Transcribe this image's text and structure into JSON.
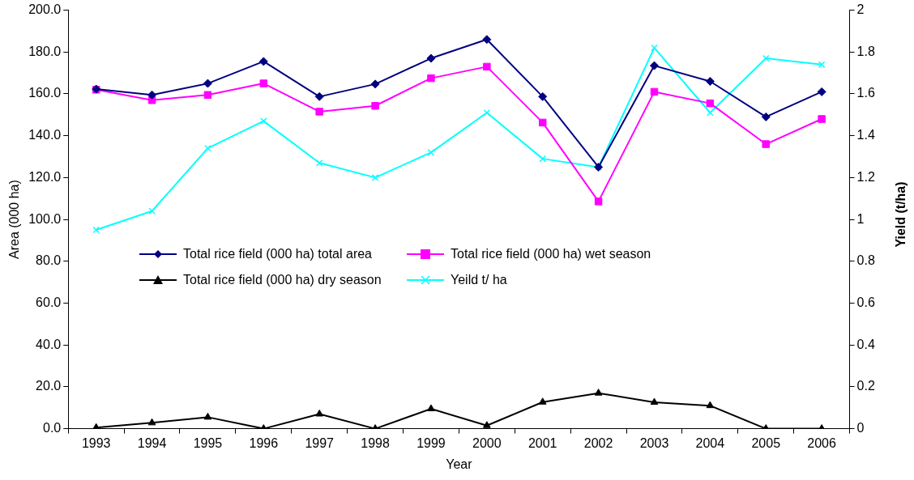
{
  "chart_data": {
    "type": "line",
    "xlabel": "Year",
    "ylabel": "Area (000 ha)",
    "y2label": "Yield (t/ha)",
    "categories": [
      "1993",
      "1994",
      "1995",
      "1996",
      "1997",
      "1998",
      "1999",
      "2000",
      "2001",
      "2002",
      "2003",
      "2004",
      "2005",
      "2006"
    ],
    "series": [
      {
        "name": "Total rice field (000 ha) total area",
        "color": "#000080",
        "marker": "diamond",
        "values": [
          162.3,
          159.5,
          165,
          175.5,
          158.7,
          164.7,
          177,
          186,
          158.7,
          125,
          173.5,
          166,
          149,
          161
        ]
      },
      {
        "name": "Total rice field (000 ha) wet season",
        "color": "#ff00ff",
        "marker": "square",
        "values": [
          162,
          157,
          159.5,
          165,
          151.5,
          154.3,
          167.5,
          173,
          146.3,
          108.6,
          161,
          155.5,
          136,
          148
        ]
      },
      {
        "name": "Total rice field (000 ha) dry season",
        "color": "#000000",
        "marker": "triangle",
        "values": [
          0.5,
          2.8,
          5.5,
          0,
          7,
          0,
          9.5,
          1.5,
          12.7,
          17,
          12.6,
          11,
          0,
          0
        ]
      },
      {
        "name": "Yeild t/ ha",
        "color": "#00ffff",
        "marker": "cross",
        "axis": "y2",
        "values": [
          0.95,
          1.04,
          1.34,
          1.47,
          1.27,
          1.2,
          1.32,
          1.51,
          1.29,
          1.25,
          1.82,
          1.51,
          1.77,
          1.74
        ]
      }
    ],
    "ylim": [
      0,
      200
    ],
    "yticks": [
      {
        "value": 0,
        "label": "0.0"
      },
      {
        "value": 20,
        "label": "20.0"
      },
      {
        "value": 40,
        "label": "40.0"
      },
      {
        "value": 60,
        "label": "60.0"
      },
      {
        "value": 80,
        "label": "80.0"
      },
      {
        "value": 100,
        "label": "100.0"
      },
      {
        "value": 120,
        "label": "120.0"
      },
      {
        "value": 140,
        "label": "140.0"
      },
      {
        "value": 160,
        "label": "160.0"
      },
      {
        "value": 180,
        "label": "180.0"
      },
      {
        "value": 200,
        "label": "200.0"
      }
    ],
    "y2lim": [
      0,
      2
    ],
    "y2ticks": [
      0,
      0.2,
      0.4,
      0.6,
      0.8,
      1,
      1.2,
      1.4,
      1.6,
      1.8,
      2
    ],
    "grid": false,
    "legend": "center",
    "line_style": "solid"
  }
}
